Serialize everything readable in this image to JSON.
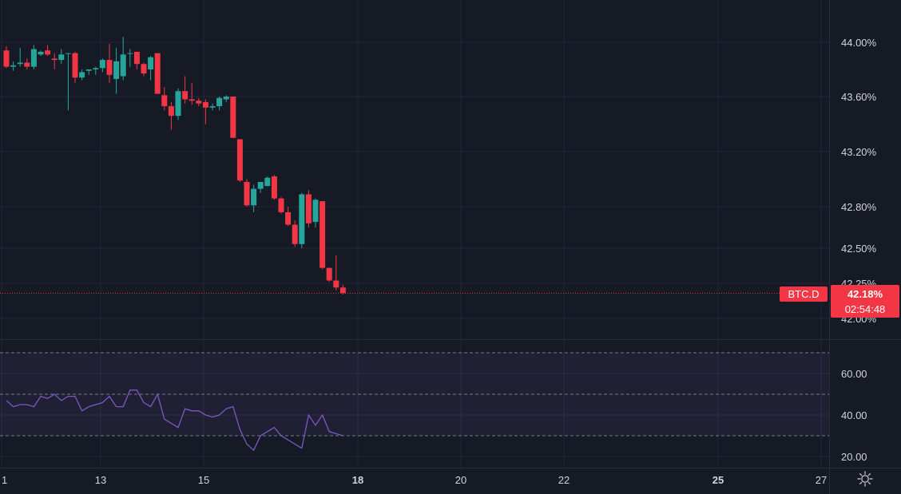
{
  "chart_data": [
    {
      "type": "candlestick",
      "symbol": "BTC.D",
      "last_price": "42.18%",
      "countdown": "02:54:48",
      "y_ticks": [
        "44.00%",
        "43.60%",
        "43.20%",
        "42.80%",
        "42.50%",
        "42.25%",
        "42.00%"
      ],
      "x_ticks": [
        "1",
        "13",
        "15",
        "18",
        "20",
        "22",
        "25",
        "27"
      ],
      "candles": [
        [
          43.94,
          43.97,
          43.81,
          43.82
        ],
        [
          43.82,
          43.86,
          43.79,
          43.83
        ],
        [
          43.84,
          43.96,
          43.82,
          43.85
        ],
        [
          43.85,
          43.88,
          43.8,
          43.82
        ],
        [
          43.82,
          43.98,
          43.8,
          43.95
        ],
        [
          43.91,
          43.94,
          43.9,
          43.93
        ],
        [
          43.94,
          43.98,
          43.9,
          43.91
        ],
        [
          43.88,
          43.92,
          43.8,
          43.87
        ],
        [
          43.87,
          43.95,
          43.84,
          43.91
        ],
        [
          43.92,
          43.92,
          43.5,
          43.92
        ],
        [
          43.92,
          43.93,
          43.7,
          43.74
        ],
        [
          43.74,
          43.8,
          43.72,
          43.78
        ],
        [
          43.79,
          43.8,
          43.76,
          43.8
        ],
        [
          43.8,
          43.82,
          43.76,
          43.81
        ],
        [
          43.81,
          43.88,
          43.78,
          43.87
        ],
        [
          43.87,
          43.99,
          43.7,
          43.76
        ],
        [
          43.73,
          43.96,
          43.62,
          43.86
        ],
        [
          43.75,
          44.04,
          43.72,
          43.91
        ],
        [
          43.92,
          43.95,
          43.82,
          43.92
        ],
        [
          43.93,
          43.93,
          43.8,
          43.84
        ],
        [
          43.84,
          43.85,
          43.75,
          43.77
        ],
        [
          43.8,
          43.9,
          43.72,
          43.89
        ],
        [
          43.92,
          43.92,
          43.62,
          43.62
        ],
        [
          43.61,
          43.67,
          43.5,
          43.53
        ],
        [
          43.53,
          43.56,
          43.36,
          43.46
        ],
        [
          43.46,
          43.66,
          43.43,
          43.64
        ],
        [
          43.64,
          43.75,
          43.55,
          43.58
        ],
        [
          43.58,
          43.7,
          43.54,
          43.57
        ],
        [
          43.57,
          43.59,
          43.53,
          43.55
        ],
        [
          43.56,
          43.58,
          43.4,
          43.52
        ],
        [
          43.52,
          43.55,
          43.5,
          43.53
        ],
        [
          43.53,
          43.6,
          43.5,
          43.59
        ],
        [
          43.58,
          43.61,
          43.56,
          43.6
        ],
        [
          43.6,
          43.6,
          43.3,
          43.3
        ],
        [
          43.29,
          43.29,
          42.98,
          42.99
        ],
        [
          42.98,
          43.0,
          42.8,
          42.81
        ],
        [
          42.81,
          42.96,
          42.76,
          42.93
        ],
        [
          42.93,
          42.98,
          42.9,
          42.98
        ],
        [
          42.95,
          43.02,
          42.95,
          43.01
        ],
        [
          43.02,
          43.03,
          42.85,
          42.86
        ],
        [
          42.86,
          42.87,
          42.75,
          42.76
        ],
        [
          42.76,
          42.8,
          42.66,
          42.67
        ],
        [
          42.67,
          42.7,
          42.51,
          42.53
        ],
        [
          42.53,
          42.9,
          42.5,
          42.89
        ],
        [
          42.89,
          42.92,
          42.65,
          42.68
        ],
        [
          42.69,
          42.86,
          42.65,
          42.85
        ],
        [
          42.84,
          42.84,
          42.35,
          42.36
        ],
        [
          42.36,
          42.36,
          42.26,
          42.27
        ],
        [
          42.27,
          42.45,
          42.2,
          42.22
        ],
        [
          42.22,
          42.24,
          42.17,
          42.18
        ]
      ],
      "rsi": {
        "y_ticks": [
          "60.00",
          "40.00",
          "20.00"
        ],
        "levels": [
          70,
          50,
          30
        ],
        "values": [
          47,
          44,
          45,
          45,
          44,
          49,
          48,
          50,
          47,
          49,
          49,
          42,
          44,
          45,
          46,
          49,
          44,
          44,
          52,
          52,
          46,
          44,
          50,
          38,
          36,
          34,
          43,
          42,
          42,
          40,
          39,
          40,
          43,
          44,
          33,
          26,
          23,
          30,
          32,
          34,
          30,
          28,
          26,
          24,
          40,
          35,
          40,
          32,
          31,
          30
        ]
      }
    }
  ],
  "colors": {
    "background": "#161a25",
    "grid": "#232736",
    "up": "#26a69a",
    "down": "#f23645",
    "rsi_line": "#7e57c2",
    "rsi_band": "rgba(126,87,194,0.10)",
    "axis_text": "#d1d4dc"
  },
  "icons": {
    "settings": "gear-icon"
  }
}
